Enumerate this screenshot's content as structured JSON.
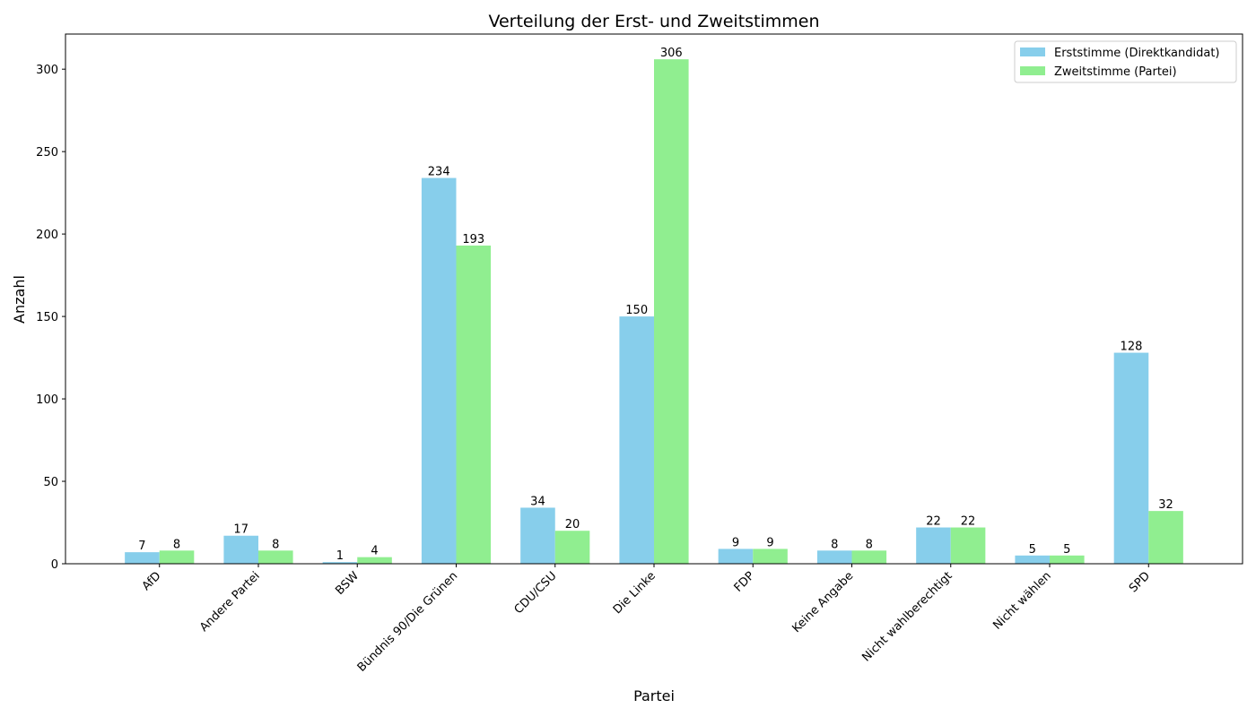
{
  "chart_data": {
    "type": "bar",
    "title": "Verteilung der Erst- und Zweitstimmen",
    "xlabel": "Partei",
    "ylabel": "Anzahl",
    "categories": [
      "AfD",
      "Andere Partei",
      "BSW",
      "Bündnis 90/Die Grünen",
      "CDU/CSU",
      "Die Linke",
      "FDP",
      "Keine Angabe",
      "Nicht wahlberechtigt",
      "Nicht wählen",
      "SPD"
    ],
    "series": [
      {
        "name": "Erststimme (Direktkandidat)",
        "color": "#87CEEB",
        "values": [
          7,
          17,
          1,
          234,
          34,
          150,
          9,
          8,
          22,
          5,
          128
        ]
      },
      {
        "name": "Zweitstimme (Partei)",
        "color": "#90EE90",
        "values": [
          8,
          8,
          4,
          193,
          20,
          306,
          9,
          8,
          22,
          5,
          32
        ]
      }
    ],
    "ylim": [
      0,
      321.3
    ],
    "yticks": [
      0,
      50,
      100,
      150,
      200,
      250,
      300
    ],
    "legend": "top-right",
    "grid": false
  }
}
